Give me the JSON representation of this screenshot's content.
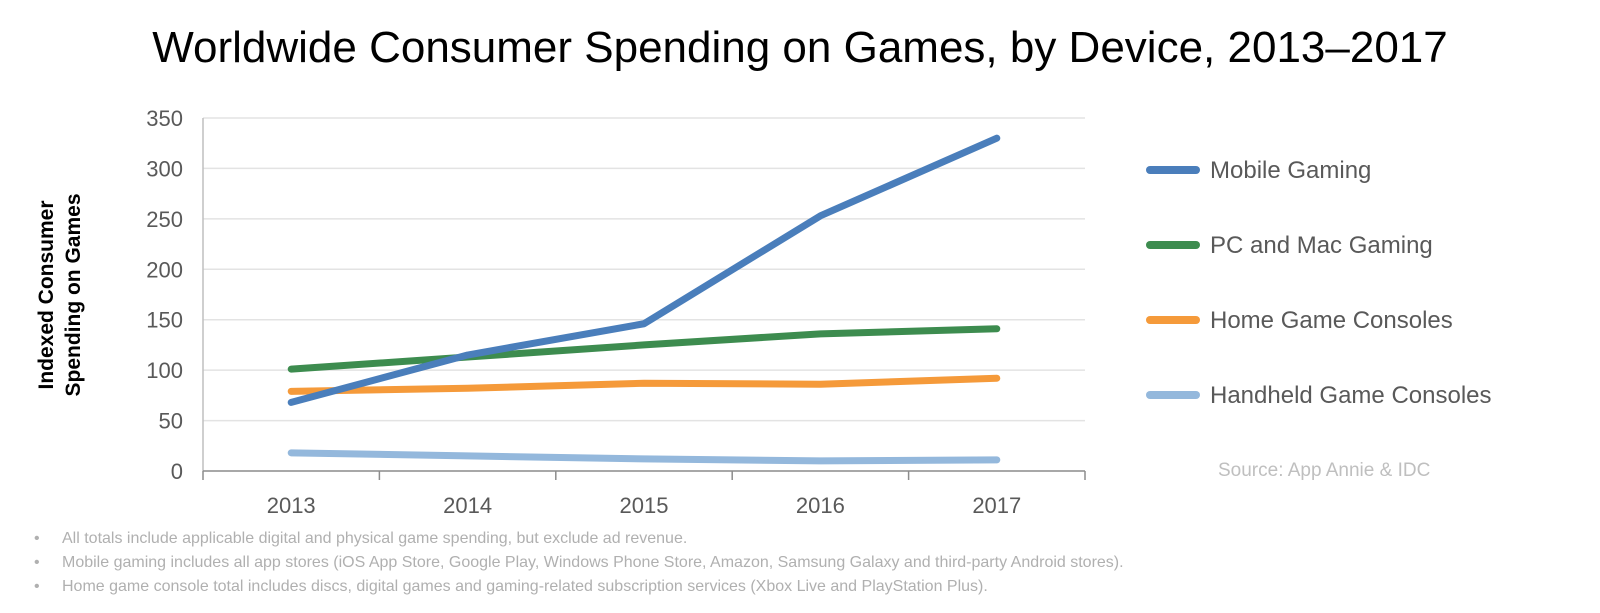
{
  "chart_data": {
    "type": "line",
    "title": "Worldwide Consumer Spending on Games, by Device, 2013–2017",
    "ylabel_lines": [
      "Indexed Consumer",
      "Spending on Games"
    ],
    "xlabel": "",
    "categories": [
      "2013",
      "2014",
      "2015",
      "2016",
      "2017"
    ],
    "ylim": [
      0,
      350
    ],
    "yticks": [
      0,
      50,
      100,
      150,
      200,
      250,
      300,
      350
    ],
    "grid": true,
    "legend_position": "right",
    "series": [
      {
        "name": "Mobile Gaming",
        "color": "#4a7ebb",
        "values": [
          68,
          115,
          146,
          253,
          330
        ]
      },
      {
        "name": "PC and Mac Gaming",
        "color": "#3d8c4f",
        "values": [
          101,
          113,
          125,
          136,
          141
        ]
      },
      {
        "name": "Home Game Consoles",
        "color": "#f59a3a",
        "values": [
          79,
          82,
          87,
          86,
          92
        ]
      },
      {
        "name": "Handheld Game Consoles",
        "color": "#94b8dc",
        "values": [
          18,
          15,
          12,
          10,
          11
        ]
      }
    ],
    "source": "Source: App Annie & IDC"
  },
  "notes": [
    "All totals include applicable digital and physical game spending, but exclude ad revenue.",
    "Mobile gaming includes all app stores (iOS App Store, Google Play, Windows Phone Store, Amazon, Samsung Galaxy and third-party Android stores).",
    "Home game console total includes discs, digital games and gaming-related subscription services (Xbox Live and PlayStation Plus)."
  ],
  "bullet": "•"
}
